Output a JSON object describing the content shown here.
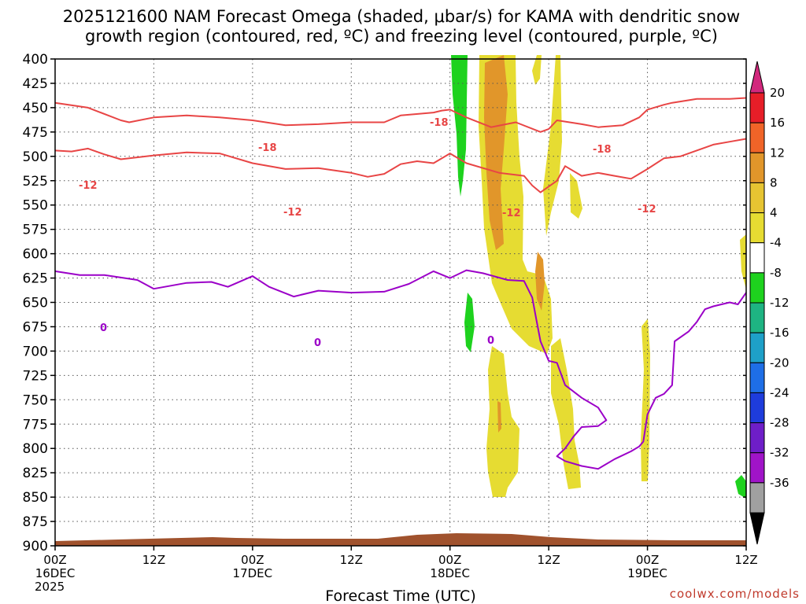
{
  "chart_data": {
    "type": "heatmap",
    "title_line1": "2025121600 NAM Forecast Omega (shaded, μbar/s) for KAMA with dendritic snow",
    "title_line2": "growth region (contoured, red, ºC) and freezing level (contoured, purple, ºC)",
    "xlabel": "Forecast Time (UTC)",
    "x_hours_range": [
      0,
      84
    ],
    "y_pressure_range": [
      400,
      900
    ],
    "y_ticks": [
      400,
      425,
      450,
      475,
      500,
      525,
      550,
      575,
      600,
      625,
      650,
      675,
      700,
      725,
      750,
      775,
      800,
      825,
      850,
      875,
      900
    ],
    "x_ticks": [
      {
        "hour": 0,
        "label": "00Z",
        "day": "16DEC",
        "year": "2025"
      },
      {
        "hour": 12,
        "label": "12Z",
        "day": "",
        "year": ""
      },
      {
        "hour": 24,
        "label": "00Z",
        "day": "17DEC",
        "year": ""
      },
      {
        "hour": 36,
        "label": "12Z",
        "day": "",
        "year": ""
      },
      {
        "hour": 48,
        "label": "00Z",
        "day": "18DEC",
        "year": ""
      },
      {
        "hour": 60,
        "label": "12Z",
        "day": "",
        "year": ""
      },
      {
        "hour": 72,
        "label": "00Z",
        "day": "19DEC",
        "year": ""
      },
      {
        "hour": 84,
        "label": "12Z",
        "day": "",
        "year": ""
      }
    ],
    "colorbar": {
      "levels": [
        20,
        16,
        12,
        8,
        4,
        -4,
        -8,
        -12,
        -16,
        -20,
        -24,
        -28,
        -32,
        -36
      ],
      "colors": [
        "#e61e28",
        "#f06428",
        "#e1962a",
        "#e6c432",
        "#e6dc32",
        "#ffffff",
        "#1ed21e",
        "#1eb482",
        "#1ea0c8",
        "#1e6ee6",
        "#1e3cdc",
        "#6e1ec8",
        "#a014c8",
        "#a0a0a0"
      ],
      "top_arrow_color": "#d2287d",
      "bottom_arrow_color": "#000000"
    },
    "contour_labels": {
      "red_minus18": "-18",
      "red_minus12": "-12",
      "purple_zero": "0"
    },
    "series": [
      {
        "name": "-18C isotherm",
        "color": "#e84545",
        "points": [
          [
            0,
            445
          ],
          [
            4,
            450
          ],
          [
            8,
            463
          ],
          [
            9,
            465
          ],
          [
            12,
            460
          ],
          [
            16,
            458
          ],
          [
            20,
            460
          ],
          [
            24,
            463
          ],
          [
            28,
            468
          ],
          [
            32,
            467
          ],
          [
            36,
            465
          ],
          [
            40,
            465
          ],
          [
            42,
            458
          ],
          [
            46,
            455
          ],
          [
            47,
            453
          ],
          [
            48,
            452
          ],
          [
            50,
            460
          ],
          [
            53,
            470
          ],
          [
            56,
            465
          ],
          [
            59,
            475
          ],
          [
            60,
            472
          ],
          [
            61,
            463
          ],
          [
            64,
            467
          ],
          [
            66,
            470
          ],
          [
            69,
            468
          ],
          [
            71,
            460
          ],
          [
            72,
            452
          ],
          [
            74,
            447
          ],
          [
            75,
            445
          ],
          [
            78,
            441
          ],
          [
            82,
            441
          ],
          [
            84,
            440
          ]
        ]
      },
      {
        "name": "-12C isotherm",
        "color": "#e84545",
        "points": [
          [
            0,
            494
          ],
          [
            2,
            495
          ],
          [
            4,
            492
          ],
          [
            6,
            498
          ],
          [
            8,
            503
          ],
          [
            12,
            499
          ],
          [
            16,
            496
          ],
          [
            20,
            497
          ],
          [
            24,
            507
          ],
          [
            28,
            513
          ],
          [
            32,
            512
          ],
          [
            36,
            517
          ],
          [
            38,
            521
          ],
          [
            40,
            518
          ],
          [
            42,
            508
          ],
          [
            44,
            505
          ],
          [
            46,
            507
          ],
          [
            48,
            497
          ],
          [
            50,
            507
          ],
          [
            54,
            517
          ],
          [
            57,
            520
          ],
          [
            58,
            530
          ],
          [
            59,
            537
          ],
          [
            61,
            525
          ],
          [
            62,
            510
          ],
          [
            64,
            520
          ],
          [
            66,
            517
          ],
          [
            68,
            520
          ],
          [
            70,
            523
          ],
          [
            71,
            518
          ],
          [
            72,
            513
          ],
          [
            74,
            502
          ],
          [
            76,
            500
          ],
          [
            80,
            488
          ],
          [
            82,
            485
          ],
          [
            84,
            482
          ]
        ]
      },
      {
        "name": "0C freezing level",
        "color": "#9b00c8",
        "points": [
          [
            0,
            618
          ],
          [
            3,
            622
          ],
          [
            6,
            622
          ],
          [
            10,
            627
          ],
          [
            12,
            636
          ],
          [
            16,
            630
          ],
          [
            19,
            629
          ],
          [
            21,
            634
          ],
          [
            24,
            623
          ],
          [
            26,
            634
          ],
          [
            29,
            644
          ],
          [
            32,
            638
          ],
          [
            36,
            640
          ],
          [
            40,
            639
          ],
          [
            43,
            631
          ],
          [
            46,
            618
          ],
          [
            48,
            625
          ],
          [
            50,
            617
          ],
          [
            52,
            620
          ],
          [
            55,
            627
          ],
          [
            57,
            628
          ],
          [
            58,
            645
          ],
          [
            58.5,
            668
          ],
          [
            59,
            690
          ],
          [
            60,
            710
          ],
          [
            61,
            712
          ],
          [
            62,
            735
          ],
          [
            64,
            748
          ],
          [
            66,
            758
          ],
          [
            67,
            771
          ],
          [
            66,
            777
          ],
          [
            64,
            778
          ],
          [
            63,
            788
          ],
          [
            62,
            800
          ],
          [
            61,
            808
          ],
          [
            62,
            813
          ],
          [
            64,
            818
          ],
          [
            66,
            821
          ],
          [
            68,
            811
          ],
          [
            70,
            803
          ],
          [
            71,
            798
          ],
          [
            71.5,
            793
          ],
          [
            72,
            765
          ],
          [
            73,
            748
          ],
          [
            74,
            744
          ],
          [
            75,
            735
          ],
          [
            75.3,
            690
          ],
          [
            77,
            680
          ],
          [
            78,
            670
          ],
          [
            79,
            657
          ],
          [
            80,
            654
          ],
          [
            82,
            650
          ],
          [
            83,
            652
          ],
          [
            84,
            640
          ]
        ]
      }
    ]
  },
  "credit": "coolwx.com/models"
}
